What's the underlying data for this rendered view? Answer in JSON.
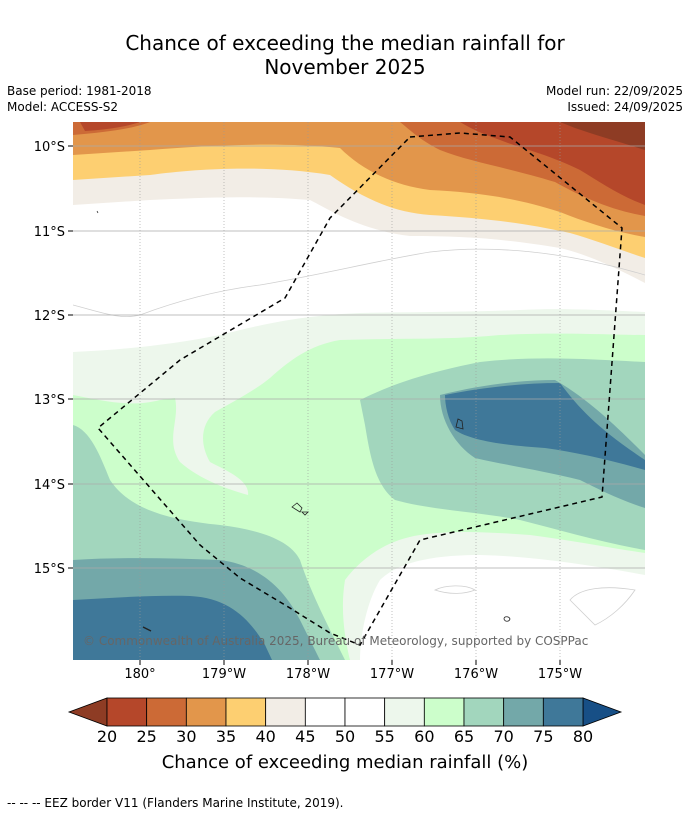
{
  "header": {
    "title_line1": "Chance of exceeding the median rainfall for",
    "title_line2": "November 2025",
    "base_period": "Base period: 1981-2018",
    "model": "Model: ACCESS-S2",
    "model_run": "Model run: 22/09/2025",
    "issued": "Issued: 24/09/2025"
  },
  "map": {
    "lat_labels": [
      "10°S",
      "11°S",
      "12°S",
      "13°S",
      "14°S",
      "15°S"
    ],
    "lon_labels": [
      "180°",
      "179°W",
      "178°W",
      "177°W",
      "176°W",
      "175°W"
    ],
    "copyright": "© Commonwealth of Australia 2025, Bureau of Meteorology, supported by COSPPac"
  },
  "colorbar": {
    "ticks": [
      "20",
      "25",
      "30",
      "35",
      "40",
      "45",
      "50",
      "55",
      "60",
      "65",
      "70",
      "75",
      "80"
    ],
    "colors": [
      "#b5472a",
      "#cc6a36",
      "#e2964b",
      "#fdcf71",
      "#f2ede6",
      "#ffffff",
      "#ffffff",
      "#edf7ec",
      "#ccfecb",
      "#a2d6bd",
      "#73a8a9",
      "#3f7899"
    ],
    "low_extend_color": "#8e3c24",
    "high_extend_color": "#174f86",
    "label": "Chance of exceeding median rainfall (%)"
  },
  "footer": {
    "legend_text": "-- -- -- EEZ border V11 (Flanders Marine Institute, 2019)."
  }
}
